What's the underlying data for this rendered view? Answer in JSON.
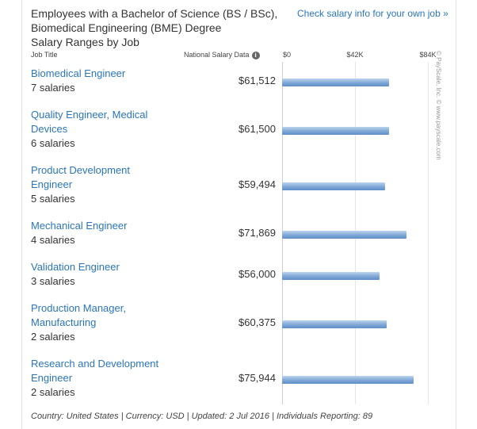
{
  "title_lines": [
    "Employees with a Bachelor of Science (BS / BSc),",
    "Biomedical Engineering (BME) Degree",
    "Salary Ranges by Job"
  ],
  "salary_link": "Check salary info for your own job »",
  "headers": {
    "job_title": "Job Title",
    "national": "National Salary Data"
  },
  "info_icon": "i",
  "footer": "Country: United States | Currency: USD | Updated: 2 Jul 2016 | Individuals Reporting: 89",
  "watermark": "© PayScale, Inc. © www.payscale.com",
  "colors": {
    "link": "#2a76b9",
    "bar": "#7ea7d6"
  },
  "chart_data": {
    "type": "bar",
    "orientation": "horizontal",
    "xlim": [
      0,
      84000
    ],
    "ticks": [
      {
        "value": 0,
        "label": "$0"
      },
      {
        "value": 42000,
        "label": "$42K"
      },
      {
        "value": 84000,
        "label": "$84K"
      }
    ],
    "rows": [
      {
        "name_lines": [
          "Biomedical Engineer"
        ],
        "count": "7 salaries",
        "value": 61512,
        "label": "$61,512"
      },
      {
        "name_lines": [
          "Quality Engineer, Medical",
          "Devices"
        ],
        "count": "6 salaries",
        "value": 61500,
        "label": "$61,500"
      },
      {
        "name_lines": [
          "Product Development",
          "Engineer"
        ],
        "count": "5 salaries",
        "value": 59494,
        "label": "$59,494"
      },
      {
        "name_lines": [
          "Mechanical Engineer"
        ],
        "count": "4 salaries",
        "value": 71869,
        "label": "$71,869"
      },
      {
        "name_lines": [
          "Validation Engineer"
        ],
        "count": "3 salaries",
        "value": 56000,
        "label": "$56,000"
      },
      {
        "name_lines": [
          "Production Manager,",
          "Manufacturing"
        ],
        "count": "2 salaries",
        "value": 60375,
        "label": "$60,375"
      },
      {
        "name_lines": [
          "Research and Development",
          "Engineer"
        ],
        "count": "2 salaries",
        "value": 75944,
        "label": "$75,944"
      }
    ]
  }
}
